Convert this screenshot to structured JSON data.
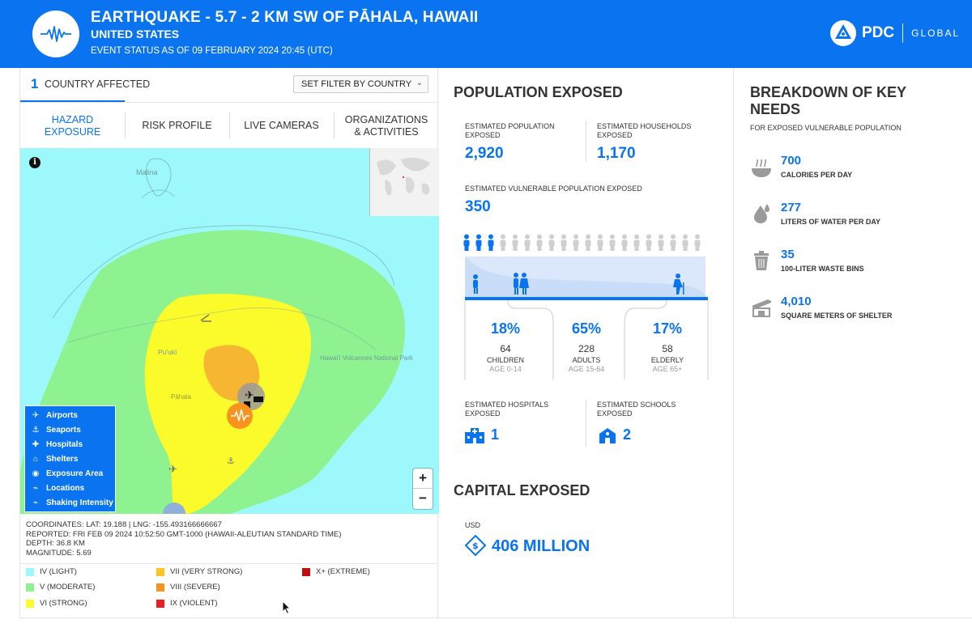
{
  "header": {
    "title": "EARTHQUAKE - 5.7 - 2 KM SW OF PĀHALA, HAWAII",
    "country": "UNITED STATES",
    "status": "EVENT STATUS AS OF 09 FEBRUARY 2024 20:45 (UTC)",
    "logo_text": "PDC",
    "logo_global": "GLOBAL",
    "brand_color": "#0a74f0"
  },
  "left_panel": {
    "country_count": "1",
    "country_label": "COUNTRY AFFECTED",
    "filter_label": "SET FILTER BY COUNTRY",
    "tabs": [
      {
        "label": "HAZARD\nEXPOSURE",
        "active": true
      },
      {
        "label": "RISK PROFILE",
        "active": false
      },
      {
        "label": "LIVE CAMERAS",
        "active": false
      },
      {
        "label": "ORGANIZATIONS\n& ACTIVITIES",
        "active": false
      }
    ],
    "map": {
      "place_labels": [
        "Malina",
        "Pu'ukī",
        "Hawai'i Volcanoes National Park",
        "Pāhala"
      ],
      "legend": [
        {
          "icon": "airport-icon",
          "label": "Airports"
        },
        {
          "icon": "seaport-icon",
          "label": "Seaports"
        },
        {
          "icon": "hospital-icon",
          "label": "Hospitals"
        },
        {
          "icon": "shelter-icon",
          "label": "Shelters"
        },
        {
          "icon": "exposure-area-icon",
          "label": "Exposure Area"
        },
        {
          "icon": "location-icon",
          "label": "Locations"
        },
        {
          "icon": "shaking-intensity-icon",
          "label": "Shaking Intensity"
        }
      ],
      "zoom_in": "+",
      "zoom_out": "−"
    },
    "details": {
      "coordinates": "COORDINATES: LAT: 19.188 | LNG: -155.493166666667",
      "reported": "REPORTED: FRI FEB 09 2024 10:52:50 GMT-1000 (HAWAII-ALEUTIAN STANDARD TIME)",
      "depth": "DEPTH: 36.8 KM",
      "magnitude": "MAGNITUDE: 5.69"
    },
    "intensity_legend": [
      {
        "label": "IV (LIGHT)",
        "color": "#9df8fb"
      },
      {
        "label": "V (MODERATE)",
        "color": "#8df28f"
      },
      {
        "label": "VI (STRONG)",
        "color": "#fbfa2a"
      },
      {
        "label": "VII (VERY STRONG)",
        "color": "#fcc524"
      },
      {
        "label": "VIII (SEVERE)",
        "color": "#f8931f"
      },
      {
        "label": "IX (VIOLENT)",
        "color": "#ee1c1c"
      },
      {
        "label": "X+ (EXTREME)",
        "color": "#c00d0d"
      }
    ]
  },
  "population": {
    "title": "POPULATION EXPOSED",
    "est_population_label": "ESTIMATED POPULATION EXPOSED",
    "est_population": "2,920",
    "est_households_label": "ESTIMATED HOUSEHOLDS EXPOSED",
    "est_households": "1,170",
    "vulnerable_label": "ESTIMATED VULNERABLE POPULATION EXPOSED",
    "vulnerable": "350",
    "highlighted_people": 3,
    "total_people": 20,
    "groups": [
      {
        "pct": "18%",
        "count": "64",
        "name": "CHILDREN",
        "age": "AGE 0-14"
      },
      {
        "pct": "65%",
        "count": "228",
        "name": "ADULTS",
        "age": "AGE 15-64"
      },
      {
        "pct": "17%",
        "count": "58",
        "name": "ELDERLY",
        "age": "AGE 65+"
      }
    ],
    "hospitals_label": "ESTIMATED HOSPITALS EXPOSED",
    "hospitals": "1",
    "schools_label": "ESTIMATED SCHOOLS EXPOSED",
    "schools": "2"
  },
  "capital": {
    "title": "CAPITAL EXPOSED",
    "currency": "USD",
    "value": "406 MILLION"
  },
  "needs": {
    "title": "BREAKDOWN OF KEY NEEDS",
    "subtitle": "FOR EXPOSED VULNERABLE POPULATION",
    "items": [
      {
        "icon": "food-bowl-icon",
        "value": "700",
        "label": "CALORIES PER DAY"
      },
      {
        "icon": "water-drop-icon",
        "value": "277",
        "label": "LITERS OF WATER PER DAY"
      },
      {
        "icon": "waste-bin-icon",
        "value": "35",
        "label": "100-LITER WASTE BINS"
      },
      {
        "icon": "shelter-icon",
        "value": "4,010",
        "label": "SQUARE METERS OF SHELTER"
      }
    ]
  }
}
